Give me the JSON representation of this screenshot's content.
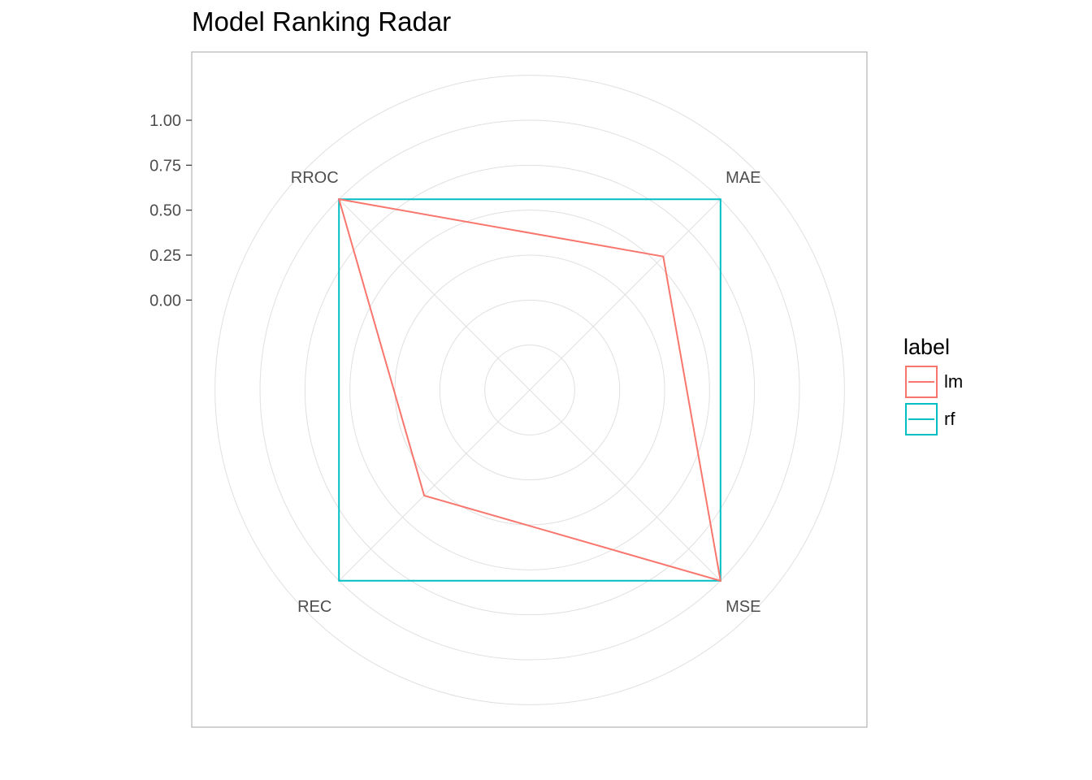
{
  "title": "Model Ranking Radar",
  "chart_data": {
    "type": "radar",
    "title": "Model Ranking Radar",
    "axes": [
      "MAE",
      "MSE",
      "REC",
      "RROC"
    ],
    "radial_ticks": [
      "0.00",
      "0.25",
      "0.50",
      "0.75",
      "1.00"
    ],
    "radial_range": [
      -0.5,
      1.0
    ],
    "legend_title": "label",
    "legend_position": "right",
    "grid": true,
    "series": [
      {
        "name": "lm",
        "color": "#F8766D",
        "values": [
          0.55,
          1.0,
          0.33,
          1.0
        ]
      },
      {
        "name": "rf",
        "color": "#00BFC4",
        "values": [
          1.0,
          1.0,
          1.0,
          1.0
        ]
      }
    ]
  }
}
